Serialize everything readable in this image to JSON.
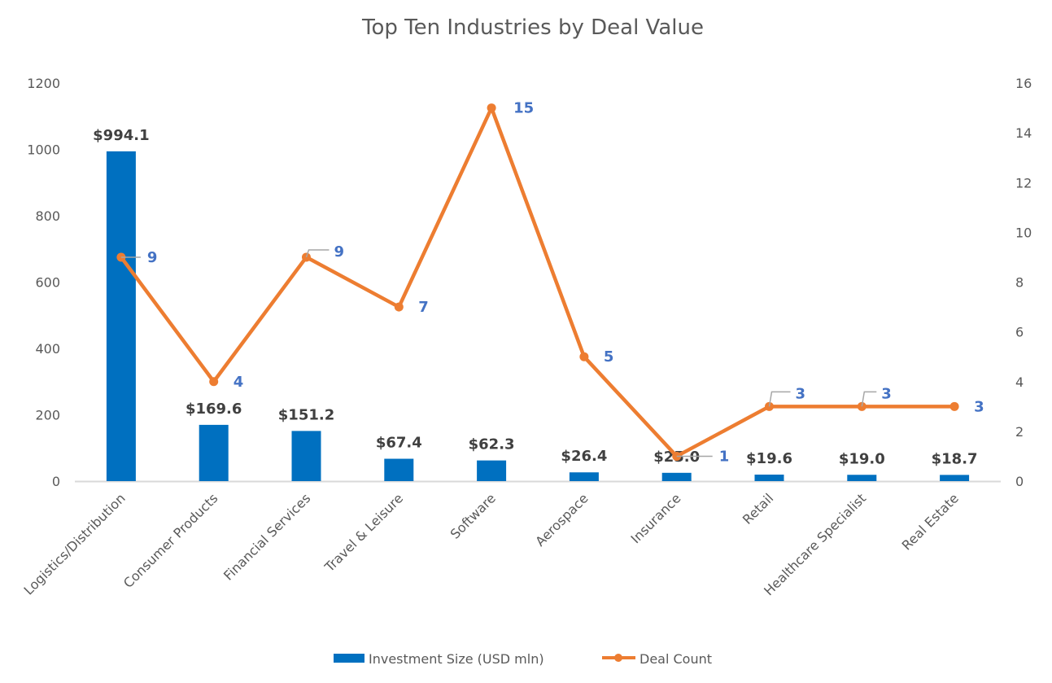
{
  "chart_data": {
    "type": "bar",
    "combo": "bar+line (dual axis)",
    "title": "Top Ten Industries by Deal Value",
    "xlabel": "",
    "ylabel": "",
    "y2label": "",
    "categories": [
      "Logistics/Distribution",
      "Consumer Products",
      "Financial Services",
      "Travel & Leisure",
      "Software",
      "Aerospace",
      "Insurance",
      "Retail",
      "Healthcare Specialist",
      "Real Estate"
    ],
    "series": [
      {
        "name": "Investment Size (USD mln)",
        "type": "bar",
        "axis": "left",
        "color": "#0070C0",
        "values": [
          994.1,
          169.6,
          151.2,
          67.4,
          62.3,
          26.4,
          25.0,
          19.6,
          19.0,
          18.7
        ],
        "labels": [
          "$994.1",
          "$169.6",
          "$151.2",
          "$67.4",
          "$62.3",
          "$26.4",
          "$25.0",
          "$19.6",
          "$19.0",
          "$18.7"
        ]
      },
      {
        "name": "Deal Count",
        "type": "line",
        "axis": "right",
        "color": "#ED7D31",
        "label_color": "#4472C4",
        "values": [
          9,
          4,
          9,
          7,
          15,
          5,
          1,
          3,
          3,
          3
        ],
        "labels": [
          "9",
          "4",
          "9",
          "7",
          "15",
          "5",
          "1",
          "3",
          "3",
          "3"
        ]
      }
    ],
    "ylim": [
      0,
      1200
    ],
    "yticks": [
      "0",
      "200",
      "400",
      "600",
      "800",
      "1000",
      "1200"
    ],
    "y2lim": [
      0,
      16
    ],
    "y2ticks": [
      "0",
      "2",
      "4",
      "6",
      "8",
      "10",
      "12",
      "14",
      "16"
    ],
    "grid": false,
    "legend": "bottom",
    "legend_entries": [
      "Investment Size (USD mln)",
      "Deal Count"
    ],
    "axis_line_color": "#D9D9D9",
    "text_color": "#595959"
  }
}
